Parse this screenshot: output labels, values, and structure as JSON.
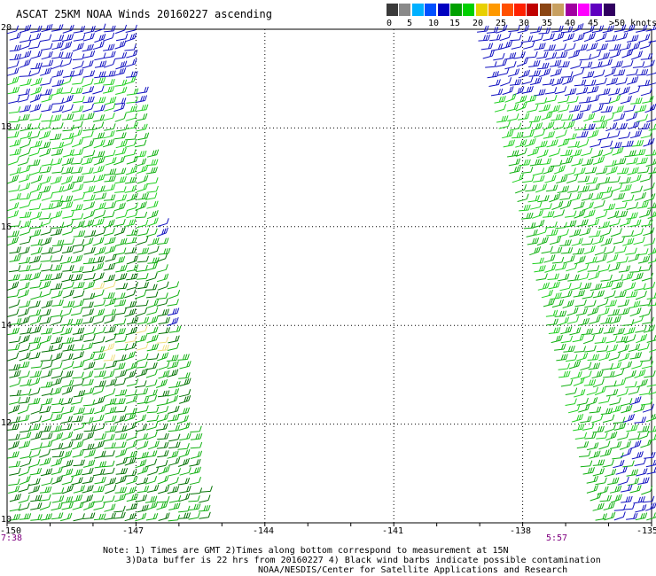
{
  "title": "ASCAT 25KM NOAA Winds 20160227 ascending",
  "legend": {
    "labels": [
      "0",
      "5",
      "10",
      "15",
      "20",
      "25",
      "30",
      "35",
      "40",
      "45",
      ">50 knots"
    ],
    "colors": [
      "#3a3a3a",
      "#8a8a8a",
      "#00b0ff",
      "#0050ff",
      "#0000c0",
      "#00a000",
      "#00d000",
      "#e8d000",
      "#ff9900",
      "#ff5000",
      "#ff2000",
      "#c00000",
      "#8b4513",
      "#c8a060",
      "#a000a0",
      "#ff00ff",
      "#6000c0",
      "#300060"
    ]
  },
  "map": {
    "lat_range": [
      10,
      20
    ],
    "lon_range": [
      -150,
      -135
    ],
    "lat_labels": [
      "20",
      "18",
      "16",
      "14",
      "12",
      "10"
    ],
    "lon_labels": [
      "-150",
      "-147",
      "-144",
      "-141",
      "-138",
      "-135"
    ],
    "time_left": "7:38",
    "time_right": "5:57",
    "wind_colors": {
      "blue": "#1010c0",
      "light_green": "#20d020",
      "mid_green": "#10b010",
      "dark_green": "#007000",
      "yellow": "#f0e080"
    }
  },
  "notes": {
    "line1": "Note: 1) Times are GMT 2)Times along bottom correspond to measurement at 15N",
    "line2": "3)Data buffer is 22 hrs from 20160227 4) Black wind barbs indicate possible contamination",
    "line3": "NOAA/NESDIS/Center for Satellite Applications and Research"
  }
}
